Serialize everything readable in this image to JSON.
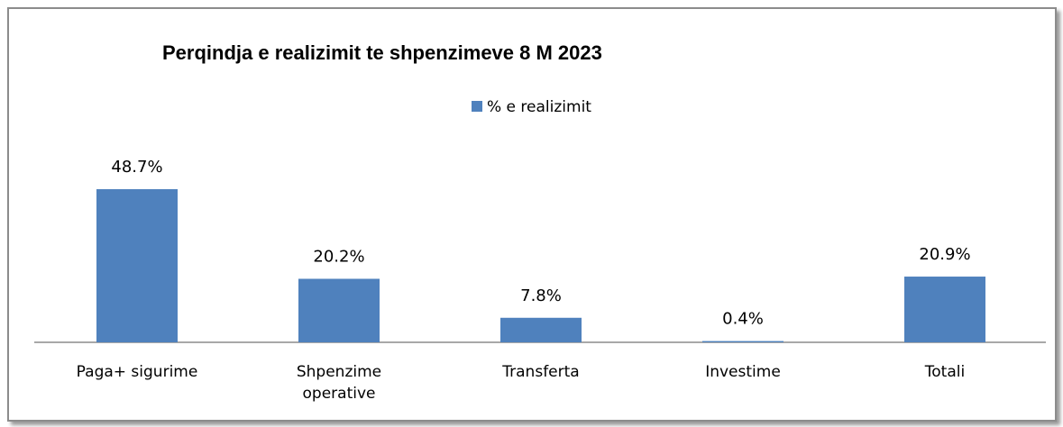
{
  "chart_data": {
    "type": "bar",
    "title": "Perqindja  e realizimit te shpenzimeve 8 M 2023",
    "categories": [
      "Paga+ sigurime",
      "Shpenzime operative",
      "Transferta",
      "Investime",
      "Totali"
    ],
    "series": [
      {
        "name": "% e realizimit",
        "color": "#4f81bd",
        "values": [
          48.7,
          20.2,
          7.8,
          0.4,
          20.9
        ],
        "value_labels": [
          "48.7%",
          "20.2%",
          "7.8%",
          "0.4%",
          "20.9%"
        ]
      }
    ]
  }
}
